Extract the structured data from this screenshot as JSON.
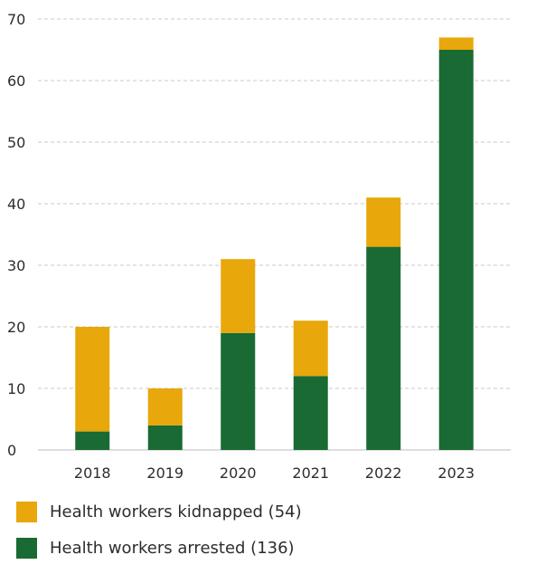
{
  "chart_data": {
    "type": "bar",
    "stacked": true,
    "categories": [
      "2018",
      "2019",
      "2020",
      "2021",
      "2022",
      "2023"
    ],
    "series": [
      {
        "name": "Health workers arrested (136)",
        "color": "#1a6a33",
        "values": [
          3,
          4,
          19,
          12,
          33,
          65
        ]
      },
      {
        "name": "Health workers kidnapped (54)",
        "color": "#e8a70a",
        "values": [
          17,
          6,
          12,
          9,
          8,
          2
        ]
      }
    ],
    "ylim": [
      0,
      70
    ],
    "yticks": [
      0,
      10,
      20,
      30,
      40,
      50,
      60,
      70
    ],
    "grid": true,
    "legend_position": "bottom"
  },
  "legend": [
    {
      "label": "Health workers kidnapped (54)",
      "color": "#e8a70a"
    },
    {
      "label": "Health workers arrested (136)",
      "color": "#1a6a33"
    }
  ]
}
